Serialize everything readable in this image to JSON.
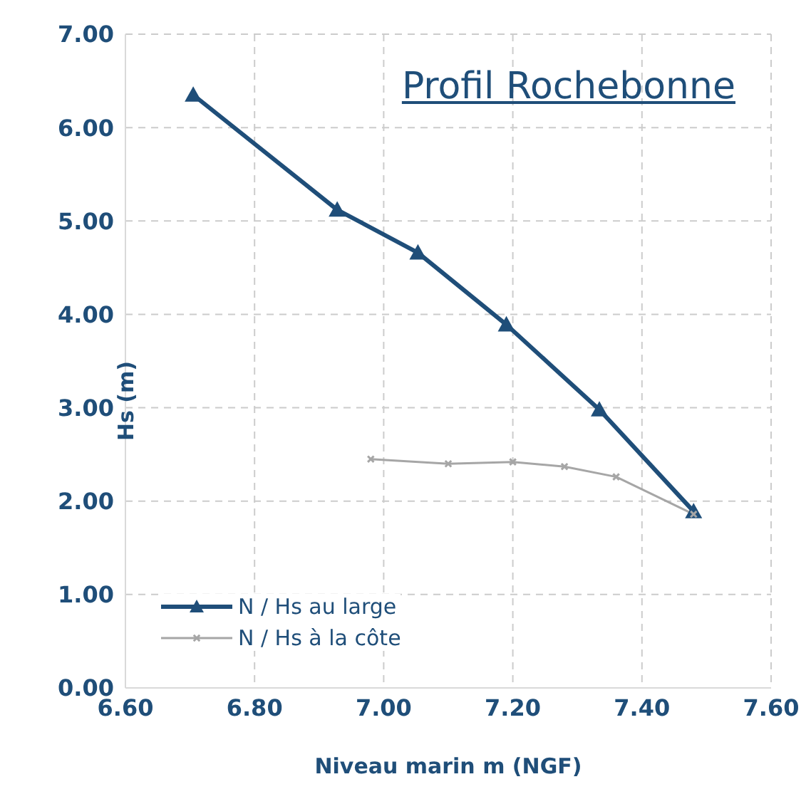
{
  "chart_data": {
    "type": "line",
    "title": "Profil Rochebonne",
    "xlabel": "Niveau marin m (NGF)",
    "ylabel": "Hs (m)",
    "series": [
      {
        "name": "N / Hs au large",
        "color": "#1f4e79",
        "marker": "triangle",
        "x": [
          6.705,
          6.928,
          7.053,
          7.19,
          7.334,
          7.48
        ],
        "values": [
          6.35,
          5.12,
          4.66,
          3.89,
          2.98,
          1.89
        ]
      },
      {
        "name": "N / Hs à la côte",
        "color": "#a6a6a6",
        "marker": "cross",
        "x": [
          6.98,
          7.1,
          7.2,
          7.28,
          7.36,
          7.48
        ],
        "values": [
          2.45,
          2.4,
          2.42,
          2.37,
          2.26,
          1.86
        ]
      }
    ],
    "xlim": [
      6.6,
      7.6
    ],
    "xticks": [
      {
        "value": 6.6,
        "label": "6.60"
      },
      {
        "value": 6.8,
        "label": "6.80"
      },
      {
        "value": 7.0,
        "label": "7.00"
      },
      {
        "value": 7.2,
        "label": "7.20"
      },
      {
        "value": 7.4,
        "label": "7.40"
      },
      {
        "value": 7.6,
        "label": "7.60"
      }
    ],
    "ylim": [
      0,
      7
    ],
    "yticks": [
      {
        "value": 0,
        "label": "0.00"
      },
      {
        "value": 1,
        "label": "1.00"
      },
      {
        "value": 2,
        "label": "2.00"
      },
      {
        "value": 3,
        "label": "3.00"
      },
      {
        "value": 4,
        "label": "4.00"
      },
      {
        "value": 5,
        "label": "5.00"
      },
      {
        "value": 6,
        "label": "6.00"
      },
      {
        "value": 7,
        "label": "7.00"
      }
    ],
    "grid": true,
    "legend": "bottom left",
    "line_style": "solid"
  }
}
